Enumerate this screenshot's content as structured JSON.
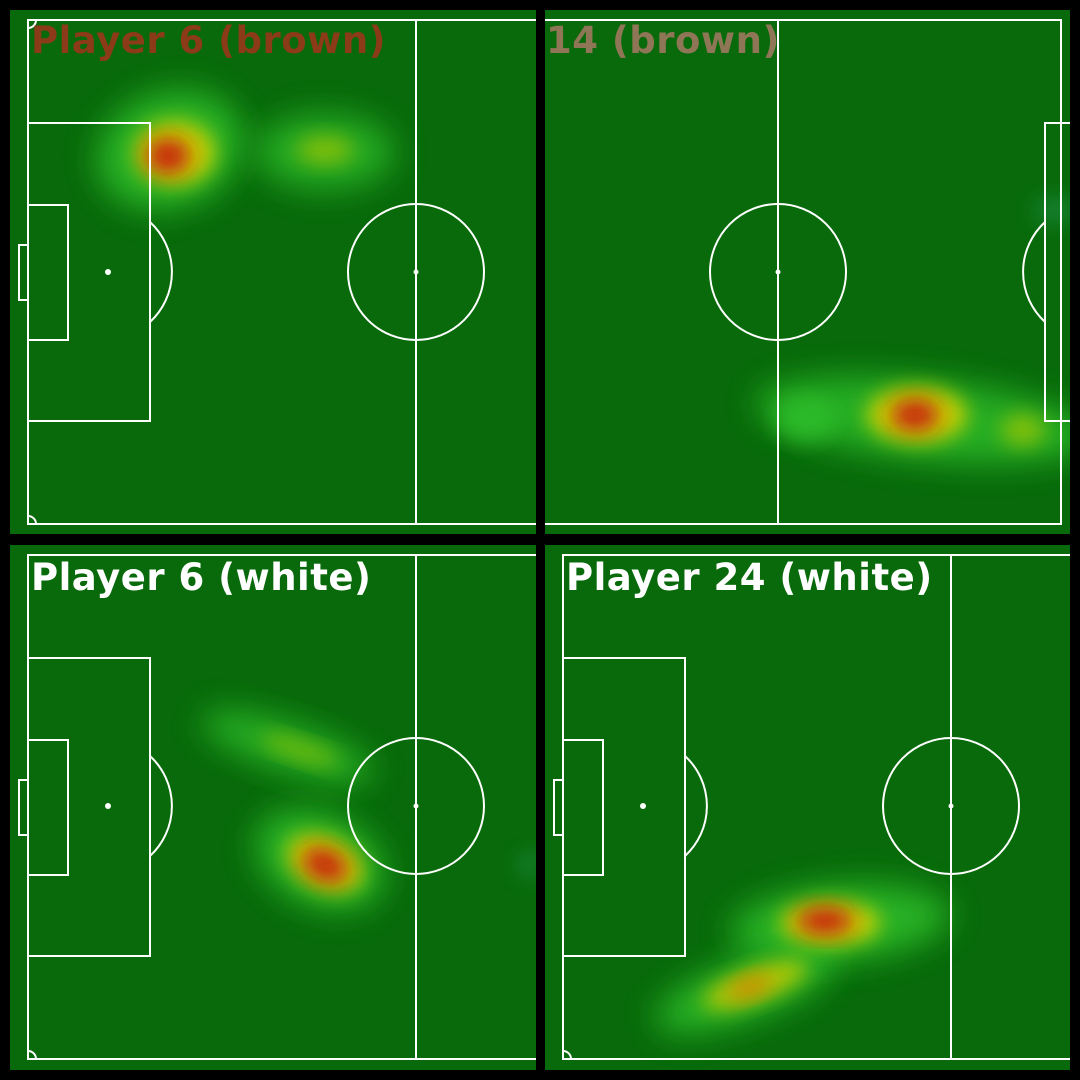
{
  "panels": [
    {
      "id": "tl",
      "title": "Player 6 (brown)",
      "title_color": "#8b3a1a"
    },
    {
      "id": "tr",
      "title": "14 (brown)",
      "title_color": "#8f7656"
    },
    {
      "id": "bl",
      "title": "Player 6 (white)",
      "title_color": "#ffffff"
    },
    {
      "id": "br",
      "title": "Player 24 (white)",
      "title_color": "#ffffff"
    }
  ],
  "colors": {
    "pitch": "#086a0a",
    "lines": "#ffffff",
    "heat_low": "#2fbf2a",
    "heat_mid": "#d9d400",
    "heat_high": "#c81a10",
    "border": "#000000"
  }
}
